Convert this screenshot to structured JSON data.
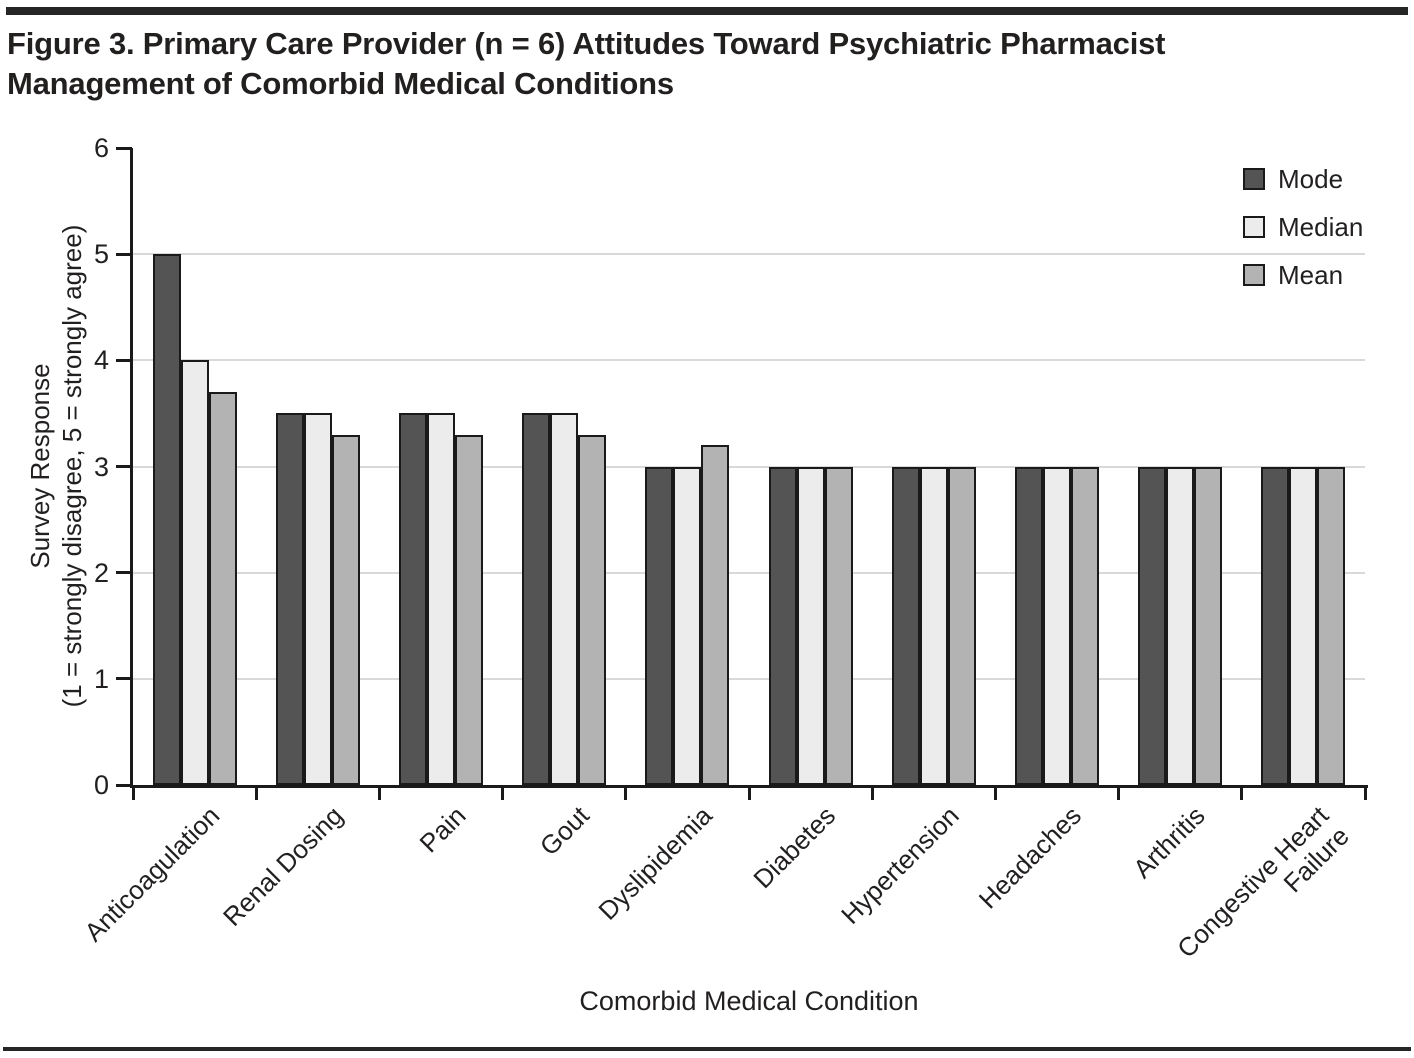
{
  "figure": {
    "title_line1": "Figure 3. Primary Care Provider (n = 6) Attitudes Toward Psychiatric Pharmacist",
    "title_line2": "Management of Comorbid Medical Conditions"
  },
  "chart_data": {
    "type": "bar",
    "title": "Figure 3. Primary Care Provider (n = 6) Attitudes Toward Psychiatric Pharmacist Management of Comorbid Medical Conditions",
    "categories": [
      "Anticoagulation",
      "Renal Dosing",
      "Pain",
      "Gout",
      "Dyslipidemia",
      "Diabetes",
      "Hypertension",
      "Headaches",
      "Arthritis",
      "Congestive Heart\nFailure"
    ],
    "series": [
      {
        "name": "Mode",
        "color": "#545454",
        "values": [
          5.0,
          3.5,
          3.5,
          3.5,
          3.0,
          3.0,
          3.0,
          3.0,
          3.0,
          3.0
        ]
      },
      {
        "name": "Median",
        "color": "#ececec",
        "values": [
          4.0,
          3.5,
          3.5,
          3.5,
          3.0,
          3.0,
          3.0,
          3.0,
          3.0,
          3.0
        ]
      },
      {
        "name": "Mean",
        "color": "#b3b3b3",
        "values": [
          3.7,
          3.3,
          3.3,
          3.3,
          3.2,
          3.0,
          3.0,
          3.0,
          3.0,
          3.0
        ]
      }
    ],
    "xlabel": "Comorbid Medical Condition",
    "ylabel_line1": "Survey Response",
    "ylabel_line2": "(1 = strongly disagree, 5 = strongly agree)",
    "ylim": [
      0,
      6
    ],
    "yticks": [
      0,
      1,
      2,
      3,
      4,
      5,
      6
    ],
    "grid": "horizontal gridlines at integer values 1-5",
    "legend_position": "top-right",
    "colors": {
      "bar_border": "#1a1a1a",
      "gridline": "#d9d9d9",
      "axis": "#1a1a1a",
      "rule": "#262626"
    }
  }
}
